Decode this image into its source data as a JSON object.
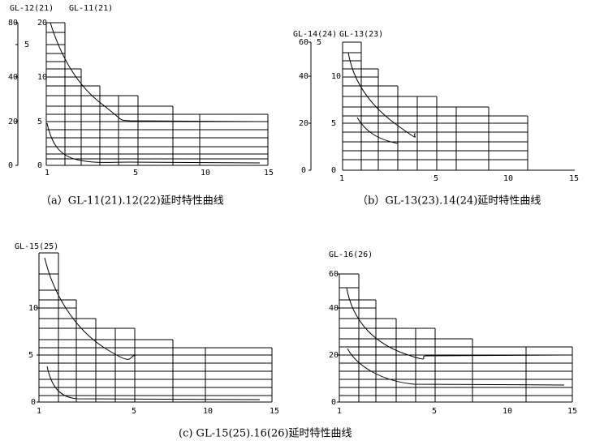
{
  "panels": [
    {
      "series_labels": [
        "GL-12(21)",
        "GL-11(21)"
      ],
      "axis1": [
        "80",
        "5",
        "40",
        "20",
        "0"
      ],
      "axis2": [
        "20",
        "10",
        "5",
        "0"
      ],
      "x_axis": [
        "1",
        "5",
        "10",
        "15"
      ]
    },
    {
      "series_labels": [
        "GL-14(24)",
        "GL-13(23)"
      ],
      "axis1": [
        "60",
        "5",
        "40",
        "20",
        "0"
      ],
      "axis2": [
        "10",
        "5",
        "0"
      ],
      "x_axis": [
        "1",
        "5",
        "10",
        "15"
      ]
    },
    {
      "series_labels": [
        "GL-15(25)"
      ],
      "axis1": [
        "10",
        "5",
        "0"
      ],
      "x_axis": [
        "1",
        "5",
        "10",
        "15"
      ]
    },
    {
      "series_labels": [
        "GL-16(26)"
      ],
      "axis1": [
        "60",
        "40",
        "20",
        "0"
      ],
      "x_axis": [
        "1",
        "5",
        "10",
        "15"
      ]
    }
  ],
  "captions": [
    "（a）GL-11(21).12(22)延时特性曲线",
    "（b）GL-13(23).14(24)延时特性曲线",
    "(c) GL-15(25).16(26)延时特性曲线"
  ]
}
